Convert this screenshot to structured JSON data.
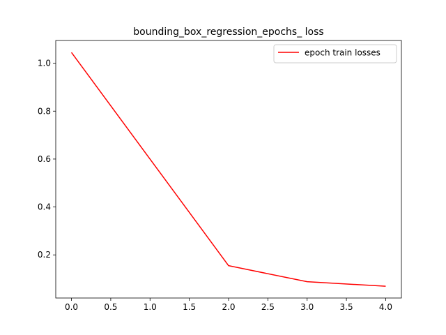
{
  "chart_data": {
    "type": "line",
    "title": "bounding_box_regression_epochs_ loss",
    "xlabel": "",
    "ylabel": "",
    "x": [
      0,
      1,
      2,
      3,
      4
    ],
    "series": [
      {
        "name": "epoch train losses",
        "values": [
          1.045,
          0.6,
          0.155,
          0.088,
          0.069
        ],
        "color": "#ff0000"
      }
    ],
    "xlim": [
      -0.2,
      4.2
    ],
    "ylim": [
      0.02,
      1.095
    ],
    "xticks": [
      0.0,
      0.5,
      1.0,
      1.5,
      2.0,
      2.5,
      3.0,
      3.5,
      4.0
    ],
    "xtick_labels": [
      "0.0",
      "0.5",
      "1.0",
      "1.5",
      "2.0",
      "2.5",
      "3.0",
      "3.5",
      "4.0"
    ],
    "yticks": [
      0.2,
      0.4,
      0.6,
      0.8,
      1.0
    ],
    "ytick_labels": [
      "0.2",
      "0.4",
      "0.6",
      "0.8",
      "1.0"
    ],
    "grid": false,
    "legend_position": "upper right"
  }
}
